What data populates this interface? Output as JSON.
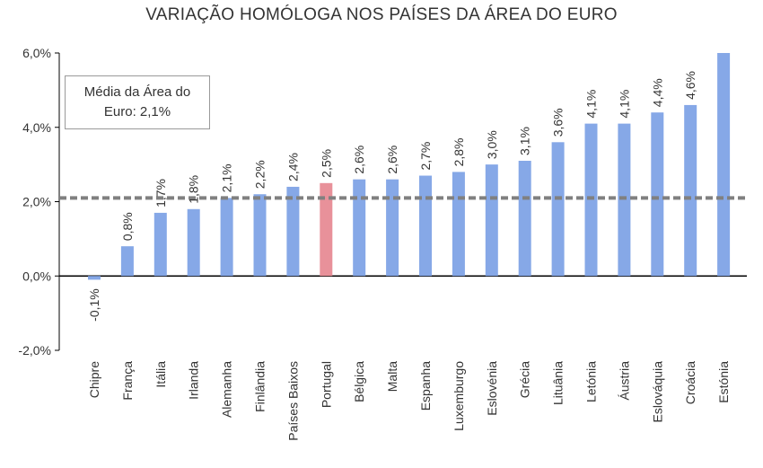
{
  "chart_data": {
    "type": "bar",
    "title": "VARIAÇÃO HOMÓLOGA NOS PAÍSES DA ÁREA DO EURO",
    "categories": [
      "Chipre",
      "França",
      "Itália",
      "Irlanda",
      "Alemanha",
      "Finlândia",
      "Países Baixos",
      "Portugal",
      "Bélgica",
      "Malta",
      "Espanha",
      "Luxemburgo",
      "Eslovénia",
      "Grécia",
      "Lituânia",
      "Letónia",
      "Áustria",
      "Eslováquia",
      "Croácia",
      "Estónia"
    ],
    "values": [
      -0.1,
      0.8,
      1.7,
      1.8,
      2.1,
      2.2,
      2.4,
      2.5,
      2.6,
      2.6,
      2.7,
      2.8,
      3.0,
      3.1,
      3.6,
      4.1,
      4.1,
      4.4,
      4.6,
      6.0
    ],
    "data_labels": [
      "-0,1%",
      "0,8%",
      "1,7%",
      "1,8%",
      "2,1%",
      "2,2%",
      "2,4%",
      "2,5%",
      "2,6%",
      "2,6%",
      "2,7%",
      "2,8%",
      "3,0%",
      "3,1%",
      "3,6%",
      "4,1%",
      "4,1%",
      "4,4%",
      "4,6%",
      ""
    ],
    "ylim": [
      -2.0,
      6.0
    ],
    "yticks": [
      -2.0,
      0.0,
      2.0,
      4.0,
      6.0
    ],
    "ytick_labels": [
      "-2,0%",
      "0,0%",
      "2,0%",
      "4,0%",
      "6,0%"
    ],
    "average": 2.1,
    "annotation_lines": [
      "Média da Área do",
      "Euro: 2,1%"
    ],
    "highlight": "Portugal",
    "colors": {
      "bar": "#86a8e7",
      "highlight": "#e8919a",
      "average_line": "#808080",
      "axis": "#000000"
    },
    "grid": false,
    "legend": "none"
  }
}
